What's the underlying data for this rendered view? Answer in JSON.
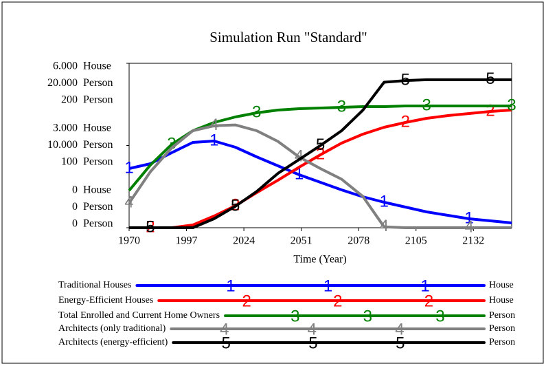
{
  "chart_data": {
    "type": "line",
    "title": "Simulation Run \"Standard\"",
    "xlabel": "Time (Year)",
    "x": [
      1970,
      1980,
      1990,
      2000,
      2010,
      2020,
      2030,
      2040,
      2050,
      2060,
      2070,
      2080,
      2090,
      2100,
      2110,
      2120,
      2130,
      2140,
      2150
    ],
    "xlim": [
      1970,
      2150
    ],
    "xticks": [
      1970,
      1997,
      2024,
      2051,
      2078,
      2105,
      2132
    ],
    "yaxes": [
      {
        "unit": "House",
        "lim": [
          0,
          6000
        ],
        "ticks": [
          0,
          {
            "value": 3000,
            "label": "3.000"
          },
          {
            "value": 6000,
            "label": "6.000"
          }
        ]
      },
      {
        "unit": "Person",
        "lim": [
          0,
          20000
        ],
        "ticks": [
          0,
          {
            "value": 10000,
            "label": "10.000"
          },
          {
            "value": 20000,
            "label": "20.000"
          }
        ]
      },
      {
        "unit": "Person",
        "lim": [
          0,
          200
        ],
        "ticks": [
          0,
          100,
          200
        ]
      }
    ],
    "series": [
      {
        "name": "Traditional Houses",
        "marker": "1",
        "unit": "House",
        "axis": 0,
        "color": "#0000ff",
        "values": [
          2159,
          2335,
          2736,
          3113,
          3163,
          2937,
          2586,
          2259,
          1933,
          1657,
          1381,
          1130,
          929,
          753,
          577,
          452,
          326,
          251,
          176
        ]
      },
      {
        "name": "Energy-Efficient Houses",
        "marker": "2",
        "unit": "House",
        "axis": 0,
        "color": "#ff0000",
        "values": [
          0,
          0,
          0,
          100,
          427,
          803,
          1280,
          1732,
          2209,
          2661,
          3088,
          3414,
          3665,
          3841,
          3991,
          4092,
          4167,
          4242,
          4293
        ]
      },
      {
        "name": "Total Enrolled and Current Home Owners",
        "marker": "3",
        "unit": "Person",
        "axis": 1,
        "color": "#008000",
        "values": [
          4520,
          7615,
          10126,
          11799,
          12803,
          13473,
          13975,
          14310,
          14477,
          14561,
          14644,
          14728,
          14728,
          14812,
          14812,
          14812,
          14812,
          14812,
          14812
        ]
      },
      {
        "name": "Architects (only traditional)",
        "marker": "4",
        "unit": "Person",
        "axis": 2,
        "color": "#808080",
        "values": [
          30,
          68,
          97,
          118,
          124,
          125,
          118,
          105,
          86,
          72,
          59,
          38,
          1,
          0,
          0,
          0,
          0,
          0,
          0
        ]
      },
      {
        "name": "Architects (energy-efficient)",
        "marker": "5",
        "unit": "Person",
        "axis": 2,
        "color": "#000000",
        "values": [
          0,
          0,
          0,
          0,
          11,
          26,
          44,
          66,
          83,
          100,
          118,
          143,
          177,
          179,
          180,
          180,
          180,
          180,
          180
        ]
      }
    ]
  }
}
